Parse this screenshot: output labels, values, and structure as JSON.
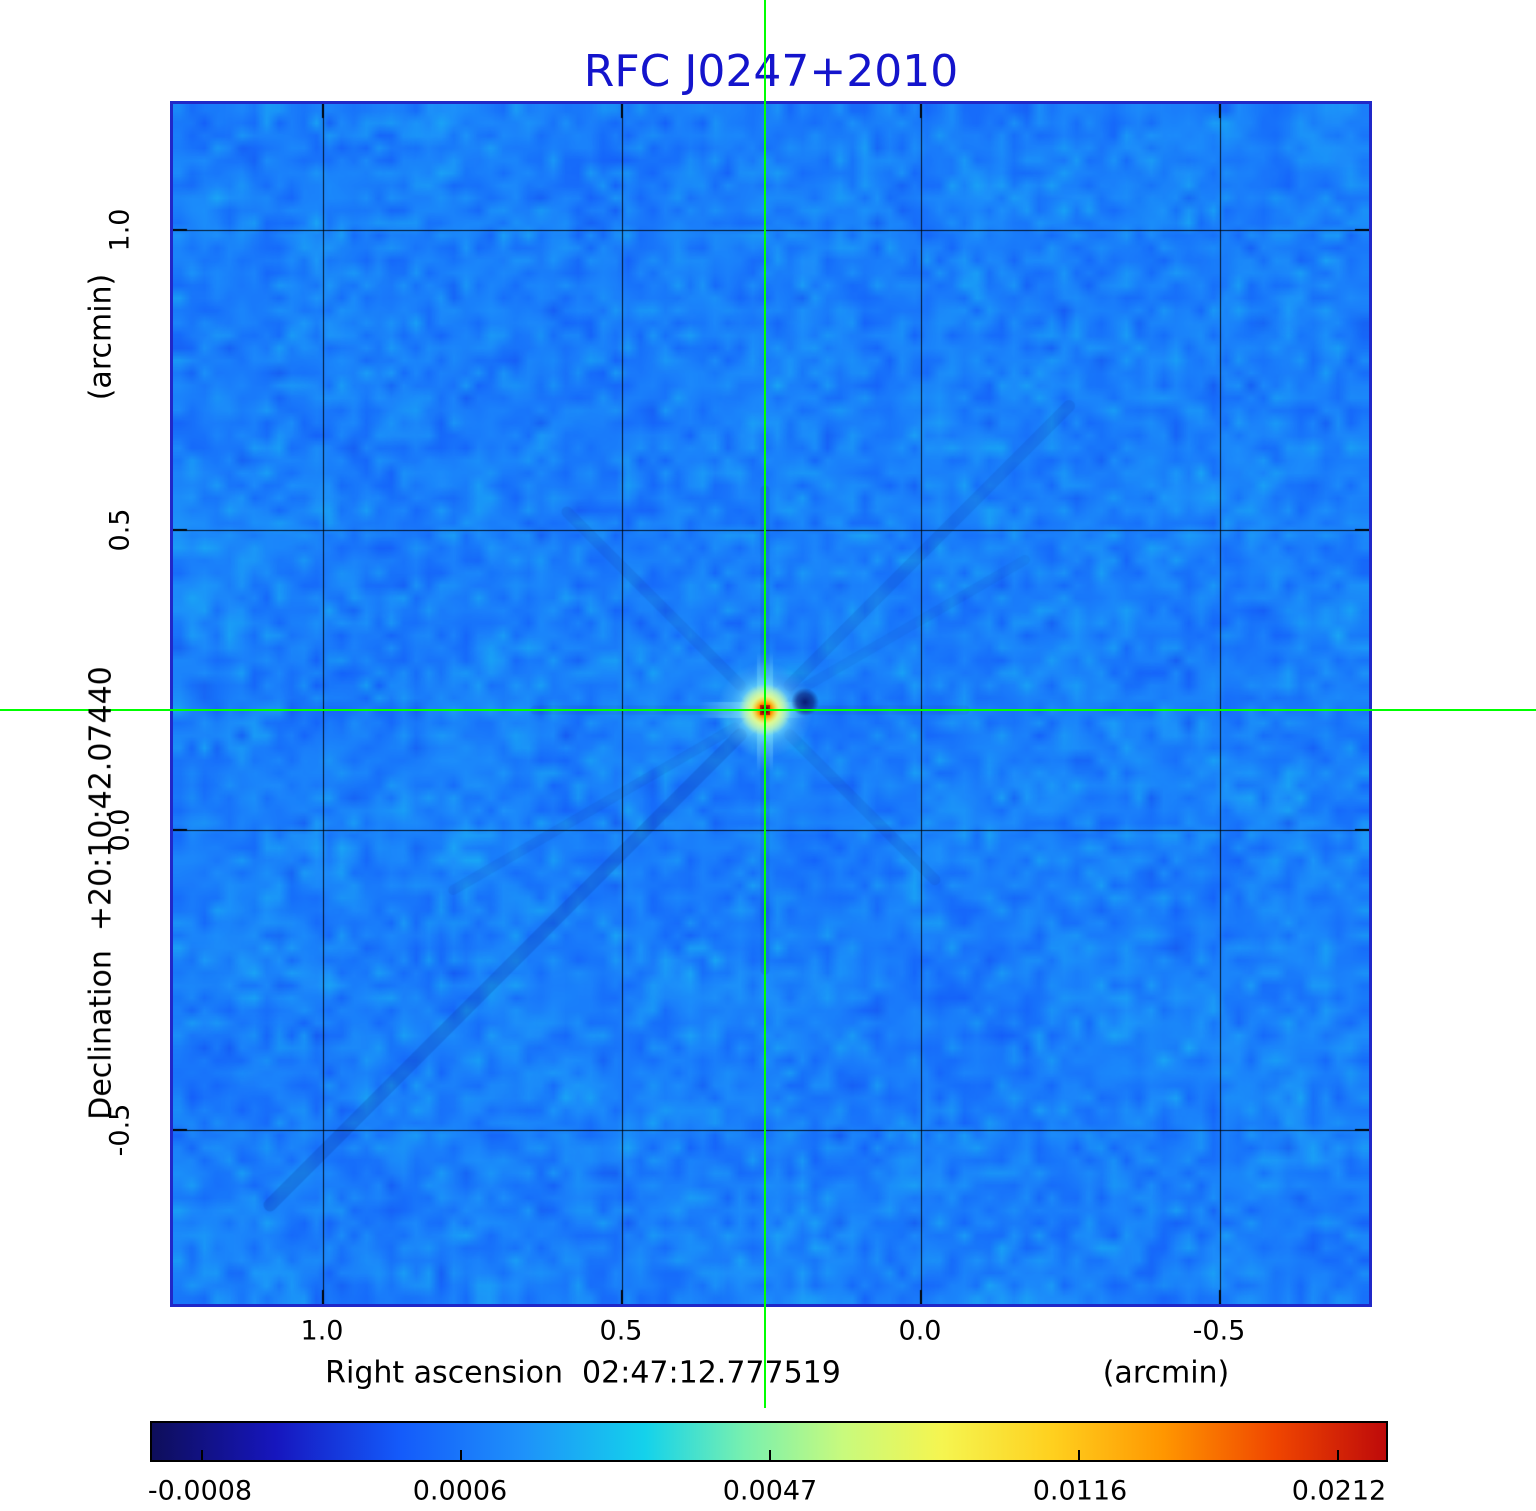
{
  "title": "RFC J0247+2010",
  "colors": {
    "title": "#1414cc",
    "crosshair": "#00ff00",
    "plot_border": "#2028c8"
  },
  "axes": {
    "x": {
      "label": "Right ascension  02:47:12.777519",
      "unit": "(arcmin)",
      "ticks": [
        "1.0",
        "0.5",
        "0.0",
        "-0.5"
      ]
    },
    "y": {
      "label": "Declination  +20:10:42.07440",
      "unit": "(arcmin)",
      "ticks": [
        "1.0",
        "0.5",
        "0.0",
        "-0.5"
      ]
    }
  },
  "colorbar": {
    "ticks": [
      "-0.0008",
      "0.0006",
      "0.0047",
      "0.0116",
      "0.0212"
    ]
  },
  "chart_data": {
    "type": "heatmap",
    "title": "RFC J0247+2010",
    "xlabel": "Right ascension 02:47:12.777519 (arcmin)",
    "ylabel": "Declination +20:10:42.07440 (arcmin)",
    "x_tick_values": [
      1.0,
      0.5,
      0.0,
      -0.5
    ],
    "y_tick_values": [
      1.0,
      0.5,
      0.0,
      -0.5
    ],
    "x_range": [
      1.25,
      -0.75
    ],
    "y_range": [
      1.21,
      -0.79
    ],
    "grid": true,
    "value_min": -0.0008,
    "value_max": 0.0212,
    "colorbar_tick_values": [
      -0.0008,
      0.0006,
      0.0047,
      0.0116,
      0.0212
    ],
    "colorbar_scale": "nonlinear",
    "background_noise_level": 0.0006,
    "peak": {
      "x": 0.26,
      "y": 0.2,
      "value": 0.0212
    },
    "crosshair": {
      "x": 0.26,
      "y": 0.2
    },
    "colormap_stops": [
      [
        0.0,
        14,
        14,
        90
      ],
      [
        0.1,
        22,
        22,
        190
      ],
      [
        0.2,
        20,
        90,
        250
      ],
      [
        0.3,
        30,
        145,
        250
      ],
      [
        0.4,
        20,
        210,
        235
      ],
      [
        0.48,
        120,
        240,
        175
      ],
      [
        0.56,
        200,
        250,
        125
      ],
      [
        0.64,
        245,
        245,
        80
      ],
      [
        0.73,
        255,
        208,
        30
      ],
      [
        0.82,
        255,
        150,
        0
      ],
      [
        0.91,
        240,
        70,
        0
      ],
      [
        1.0,
        190,
        10,
        10
      ]
    ]
  }
}
